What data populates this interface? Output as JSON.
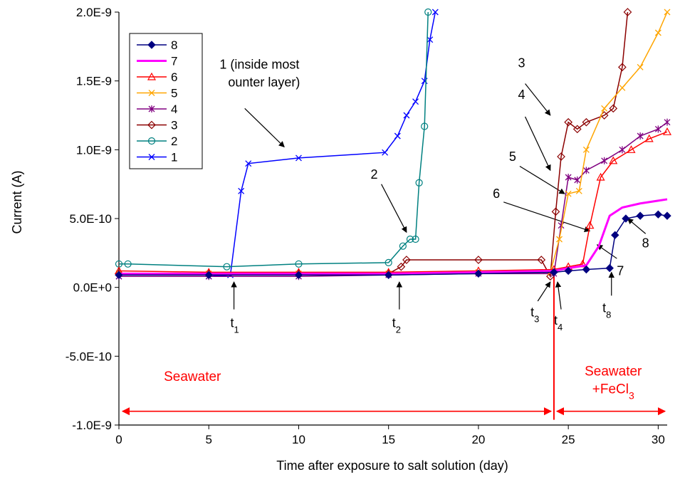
{
  "chart_data": {
    "type": "line",
    "title": "",
    "xlabel": "Time after exposure to salt solution (day)",
    "ylabel": "Current (A)",
    "xlim": [
      0,
      30.5
    ],
    "ylim": [
      -1e-09,
      2e-09
    ],
    "x_ticks": [
      0,
      5,
      10,
      15,
      20,
      25,
      30
    ],
    "x_tick_labels": [
      "0",
      "5",
      "10",
      "15",
      "20",
      "25",
      "30"
    ],
    "y_ticks": [
      -1e-09,
      -5e-10,
      0,
      5e-10,
      1e-09,
      1.5e-09,
      2e-09
    ],
    "y_tick_labels": [
      "-1.0E-9",
      "-5.0E-10",
      "0.0E+0",
      "5.0E-10",
      "1.0E-9",
      "1.5E-9",
      "2.0E-9"
    ],
    "grid": false,
    "legend_position": "top-left",
    "series": [
      {
        "name": "8",
        "color": "#000080",
        "marker": "diamond-filled",
        "x": [
          0,
          5,
          10,
          15,
          20,
          24.2,
          25,
          26,
          27.3,
          27.6,
          28.2,
          29,
          30,
          30.5
        ],
        "y": [
          9e-11,
          9e-11,
          9e-11,
          9e-11,
          1e-10,
          1.1e-10,
          1.2e-10,
          1.3e-10,
          1.4e-10,
          3.8e-10,
          5e-10,
          5.2e-10,
          5.3e-10,
          5.2e-10
        ]
      },
      {
        "name": "7",
        "color": "#ff00ff",
        "marker": "none",
        "x": [
          0,
          5,
          10,
          15,
          20,
          24.2,
          25,
          26,
          26.7,
          27.3,
          28,
          29,
          30,
          30.5
        ],
        "y": [
          1e-10,
          1e-10,
          1e-10,
          1e-10,
          1.1e-10,
          1.2e-10,
          1.4e-10,
          1.6e-10,
          3e-10,
          5.2e-10,
          5.8e-10,
          6.1e-10,
          6.3e-10,
          6.4e-10
        ]
      },
      {
        "name": "6",
        "color": "#ff0000",
        "marker": "triangle-open",
        "x": [
          0,
          5,
          10,
          15,
          20,
          24.2,
          25,
          25.8,
          26.2,
          26.8,
          27.5,
          28.5,
          29.5,
          30.5
        ],
        "y": [
          1.2e-10,
          1.1e-10,
          1.1e-10,
          1.1e-10,
          1.2e-10,
          1.3e-10,
          1.5e-10,
          1.7e-10,
          4.5e-10,
          8e-10,
          9.2e-10,
          1e-09,
          1.08e-09,
          1.13e-09
        ]
      },
      {
        "name": "5",
        "color": "#ffa500",
        "marker": "x",
        "x": [
          0,
          5,
          10,
          15,
          20,
          24,
          24.5,
          25,
          25.6,
          26,
          27,
          28,
          29,
          30,
          30.5
        ],
        "y": [
          1e-10,
          1e-10,
          1e-10,
          1e-10,
          1.1e-10,
          1.1e-10,
          3.5e-10,
          6.8e-10,
          7e-10,
          1e-09,
          1.3e-09,
          1.45e-09,
          1.6e-09,
          1.85e-09,
          2e-09
        ]
      },
      {
        "name": "4",
        "color": "#800080",
        "marker": "asterisk",
        "x": [
          0,
          5,
          10,
          15,
          20,
          24.2,
          24.6,
          25,
          25.5,
          26,
          27,
          28,
          29,
          30,
          30.5
        ],
        "y": [
          8e-11,
          8e-11,
          8e-11,
          9e-11,
          1e-10,
          1e-10,
          4.5e-10,
          8e-10,
          7.8e-10,
          8.5e-10,
          9.2e-10,
          1e-09,
          1.1e-09,
          1.15e-09,
          1.2e-09
        ]
      },
      {
        "name": "3",
        "color": "#8b0000",
        "marker": "diamond-open",
        "x": [
          0,
          5,
          10,
          15,
          15.7,
          16,
          20,
          23.5,
          24,
          24.3,
          24.6,
          25,
          25.5,
          26,
          27,
          27.5,
          28,
          28.3
        ],
        "y": [
          1e-10,
          1e-10,
          1e-10,
          1e-10,
          1.5e-10,
          2e-10,
          2e-10,
          2e-10,
          8e-11,
          5.5e-10,
          9.5e-10,
          1.2e-09,
          1.15e-09,
          1.2e-09,
          1.25e-09,
          1.3e-09,
          1.6e-09,
          2e-09
        ]
      },
      {
        "name": "2",
        "color": "#008080",
        "marker": "circle-open",
        "x": [
          0,
          0.5,
          6,
          10,
          15,
          15.8,
          16.2,
          16.5,
          16.7,
          17.0,
          17.2
        ],
        "y": [
          1.7e-10,
          1.7e-10,
          1.5e-10,
          1.7e-10,
          1.8e-10,
          3e-10,
          3.5e-10,
          3.5e-10,
          7.6e-10,
          1.17e-09,
          2e-09
        ]
      },
      {
        "name": "1",
        "color": "#0000ff",
        "marker": "x",
        "x": [
          0,
          5,
          6.2,
          6.8,
          7.2,
          10,
          14.8,
          15.5,
          16,
          16.5,
          17.0,
          17.3,
          17.6
        ],
        "y": [
          8e-11,
          8e-11,
          9e-11,
          7e-10,
          9e-10,
          9.4e-10,
          9.8e-10,
          1.1e-09,
          1.25e-09,
          1.35e-09,
          1.5e-09,
          1.8e-09,
          2e-09
        ]
      }
    ],
    "annotations": [
      {
        "text": "1 (inside most",
        "line2": "ounter layer)",
        "color": "#000000",
        "text_x": 5.6,
        "text_y": 1.59e-09,
        "arrow_from": [
          7.0,
          1.3e-09
        ],
        "arrow_to": [
          9.2,
          1.02e-09
        ]
      },
      {
        "text": "2",
        "color": "#000000",
        "text_x": 14.0,
        "text_y": 7.9e-10,
        "arrow_from": [
          14.6,
          7.5e-10
        ],
        "arrow_to": [
          16.0,
          4e-10
        ]
      },
      {
        "text": "3",
        "color": "#000000",
        "text_x": 22.2,
        "text_y": 1.6e-09,
        "arrow_from": [
          22.6,
          1.48e-09
        ],
        "arrow_to": [
          24.0,
          1.25e-09
        ]
      },
      {
        "text": "4",
        "color": "#000000",
        "text_x": 22.2,
        "text_y": 1.37e-09,
        "arrow_from": [
          22.6,
          1.24e-09
        ],
        "arrow_to": [
          24.0,
          8.5e-10
        ]
      },
      {
        "text": "5",
        "color": "#000000",
        "text_x": 21.7,
        "text_y": 9.2e-10,
        "arrow_from": [
          22.3,
          8.8e-10
        ],
        "arrow_to": [
          24.8,
          6.8e-10
        ]
      },
      {
        "text": "6",
        "color": "#000000",
        "text_x": 20.8,
        "text_y": 6.5e-10,
        "arrow_from": [
          21.4,
          6.2e-10
        ],
        "arrow_to": [
          26.2,
          4.1e-10
        ]
      },
      {
        "text": "7",
        "color": "#000000",
        "text_x": 27.7,
        "text_y": 9e-11,
        "arrow_from": [
          27.7,
          2.1e-10
        ],
        "arrow_to": [
          26.6,
          3.1e-10
        ]
      },
      {
        "text": "8",
        "color": "#000000",
        "text_x": 29.1,
        "text_y": 2.9e-10,
        "arrow_from": [
          29.3,
          3.9e-10
        ],
        "arrow_to": [
          28.3,
          5e-10
        ]
      },
      {
        "text": "t",
        "sub": "1",
        "color": "#000000",
        "text_x": 6.2,
        "text_y": -2.9e-10,
        "arrow_from": [
          6.4,
          -1.6e-10
        ],
        "arrow_to": [
          6.4,
          4e-11
        ]
      },
      {
        "text": "t",
        "sub": "2",
        "color": "#000000",
        "text_x": 15.2,
        "text_y": -2.9e-10,
        "arrow_from": [
          15.6,
          -1.6e-10
        ],
        "arrow_to": [
          15.6,
          4e-11
        ]
      },
      {
        "text": "t",
        "sub": "3",
        "color": "#000000",
        "text_x": 22.9,
        "text_y": -2.1e-10,
        "arrow_from": [
          23.3,
          -1e-10
        ],
        "arrow_to": [
          24.0,
          4e-11
        ]
      },
      {
        "text": "t",
        "sub": "4",
        "color": "#000000",
        "text_x": 24.2,
        "text_y": -2.7e-10,
        "arrow_from": [
          24.6,
          -1.6e-10
        ],
        "arrow_to": [
          24.4,
          4e-11
        ]
      },
      {
        "text": "t",
        "sub": "8",
        "color": "#000000",
        "text_x": 26.9,
        "text_y": -1.8e-10,
        "arrow_from": [
          27.4,
          -6e-11
        ],
        "arrow_to": [
          27.4,
          1.1e-10
        ]
      }
    ],
    "regions": [
      {
        "label": "Seawater",
        "color": "#ff0000",
        "from": 0,
        "to": 24.2,
        "label_x": 2.5,
        "label_y": -6.8e-10
      },
      {
        "label": "Seawater",
        "line2": "+FeCl",
        "sub": "3",
        "color": "#ff0000",
        "from": 24.2,
        "to": 30.5,
        "label_x": 27.5,
        "label_y": -6.4e-10
      }
    ],
    "region_arrow_y": -9e-10,
    "divider_x": 24.2
  }
}
